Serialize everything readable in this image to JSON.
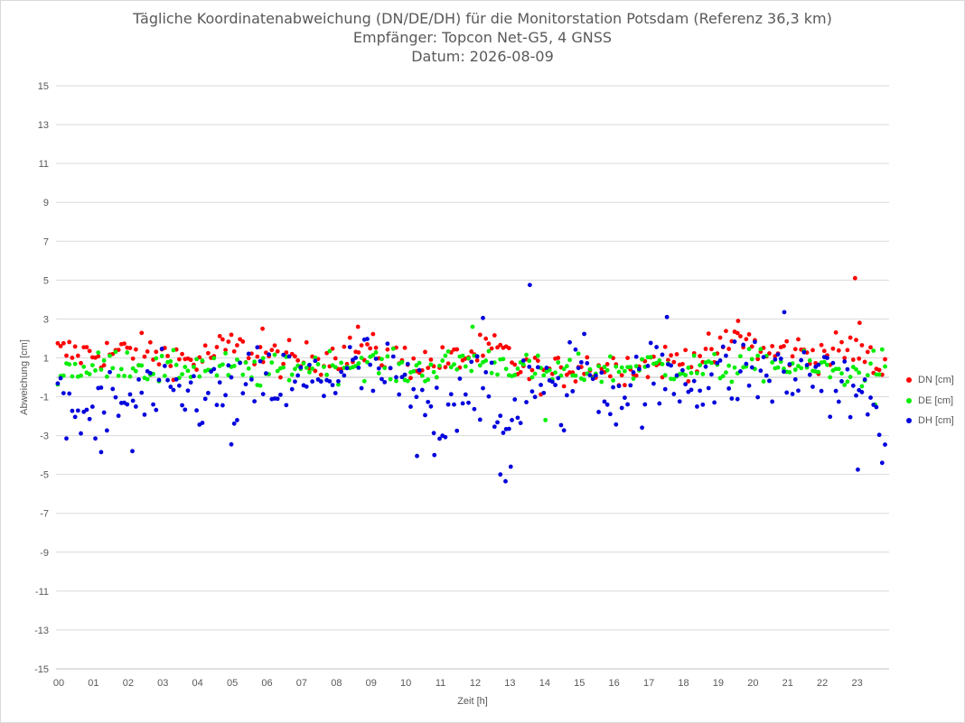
{
  "chart_data": {
    "type": "scatter",
    "title": "Tägliche Koordinatenabweichung (DN/DE/DH) für die Monitorstation Potsdam (Referenz 36,3 km)",
    "subtitle1": "Empfänger: Topcon Net-G5, 4 GNSS",
    "subtitle2": "Datum: 2026-08-09",
    "xlabel": "Zeit [h]",
    "ylabel": "Abweichung [cm]",
    "xlim": [
      0,
      24
    ],
    "ylim": [
      -15,
      15
    ],
    "x_ticks": [
      "00",
      "01",
      "02",
      "03",
      "04",
      "05",
      "06",
      "07",
      "08",
      "09",
      "10",
      "11",
      "12",
      "13",
      "14",
      "15",
      "16",
      "17",
      "18",
      "19",
      "20",
      "21",
      "22",
      "23"
    ],
    "y_ticks": [
      15,
      13,
      11,
      9,
      7,
      5,
      3,
      1,
      -1,
      -3,
      -5,
      -7,
      -9,
      -11,
      -13,
      -15
    ],
    "grid": "horizontal",
    "legend_position": "right",
    "sample_interval_minutes": 5,
    "series": [
      {
        "name": "DN [cm]",
        "color": "#ff0000",
        "profile": [
          [
            0,
            1.3
          ],
          [
            1,
            1.2
          ],
          [
            2,
            1.3
          ],
          [
            3,
            1.2
          ],
          [
            4,
            0.8
          ],
          [
            5,
            1.6
          ],
          [
            6,
            1.1
          ],
          [
            7,
            0.8
          ],
          [
            8,
            1.2
          ],
          [
            9,
            1.3
          ],
          [
            10,
            0.9
          ],
          [
            11,
            0.6
          ],
          [
            12,
            1.2
          ],
          [
            12.8,
            1.4
          ],
          [
            13.5,
            0.3
          ],
          [
            14.5,
            0.2
          ],
          [
            15,
            0.6
          ],
          [
            16,
            0.5
          ],
          [
            17,
            0.7
          ],
          [
            18,
            0.9
          ],
          [
            19,
            1.2
          ],
          [
            19.7,
            2.2
          ],
          [
            20.5,
            1.1
          ],
          [
            21,
            1.4
          ],
          [
            22,
            1.2
          ],
          [
            23,
            1.5
          ],
          [
            23.9,
            0.2
          ]
        ],
        "spread": 0.45,
        "highlights": [
          [
            23.02,
            5.1
          ],
          [
            23.15,
            2.8
          ],
          [
            19.65,
            2.9
          ],
          [
            8.7,
            2.6
          ],
          [
            5.95,
            2.5
          ]
        ]
      },
      {
        "name": "DE [cm]",
        "color": "#00ee00",
        "profile": [
          [
            0,
            0.5
          ],
          [
            1,
            0.4
          ],
          [
            2,
            0.8
          ],
          [
            3,
            0.3
          ],
          [
            4,
            0.6
          ],
          [
            5,
            0.4
          ],
          [
            6,
            0.2
          ],
          [
            7,
            0.6
          ],
          [
            8,
            0.6
          ],
          [
            9,
            0.8
          ],
          [
            10,
            0.3
          ],
          [
            11,
            0.5
          ],
          [
            12,
            0.9
          ],
          [
            13,
            0.7
          ],
          [
            14,
            0.2
          ],
          [
            15,
            0.3
          ],
          [
            16,
            0.4
          ],
          [
            17,
            0.6
          ],
          [
            18,
            0.5
          ],
          [
            19,
            0.4
          ],
          [
            20,
            0.6
          ],
          [
            21,
            0.6
          ],
          [
            22,
            0.4
          ],
          [
            23,
            0.1
          ],
          [
            23.9,
            0.8
          ]
        ],
        "spread": 0.4,
        "highlights": [
          [
            12,
            2.6
          ],
          [
            14.1,
            -2.2
          ],
          [
            23.6,
            -1.4
          ]
        ]
      },
      {
        "name": "DH [cm]",
        "color": "#0000dd",
        "profile": [
          [
            0,
            -1.8
          ],
          [
            1,
            -2.0
          ],
          [
            2,
            -1.3
          ],
          [
            3,
            -1.0
          ],
          [
            4,
            -0.9
          ],
          [
            5,
            -1.0
          ],
          [
            6,
            -0.3
          ],
          [
            7,
            -0.5
          ],
          [
            8,
            0.1
          ],
          [
            9,
            0.4
          ],
          [
            10,
            -0.5
          ],
          [
            11,
            -2.0
          ],
          [
            12,
            0.2
          ],
          [
            12.9,
            -3.0
          ],
          [
            13.6,
            0.2
          ],
          [
            14.5,
            -1.5
          ],
          [
            15,
            1.0
          ],
          [
            16,
            -0.8
          ],
          [
            17,
            -0.2
          ],
          [
            18,
            0.0
          ],
          [
            19,
            0.0
          ],
          [
            20,
            0.5
          ],
          [
            21,
            -0.1
          ],
          [
            22,
            0.5
          ],
          [
            23,
            -1.0
          ],
          [
            23.9,
            -2.2
          ]
        ],
        "spread": 1.0,
        "highlights": [
          [
            13.65,
            4.75
          ],
          [
            12.95,
            -5.35
          ],
          [
            12.8,
            -5.0
          ],
          [
            13.1,
            -4.6
          ],
          [
            23.1,
            -4.75
          ],
          [
            20.98,
            3.35
          ],
          [
            12.3,
            3.05
          ],
          [
            17.6,
            3.1
          ],
          [
            10.4,
            -4.05
          ],
          [
            10.9,
            -4.0
          ],
          [
            5.05,
            -3.45
          ],
          [
            1.3,
            -3.85
          ],
          [
            2.2,
            -3.8
          ]
        ]
      }
    ]
  }
}
